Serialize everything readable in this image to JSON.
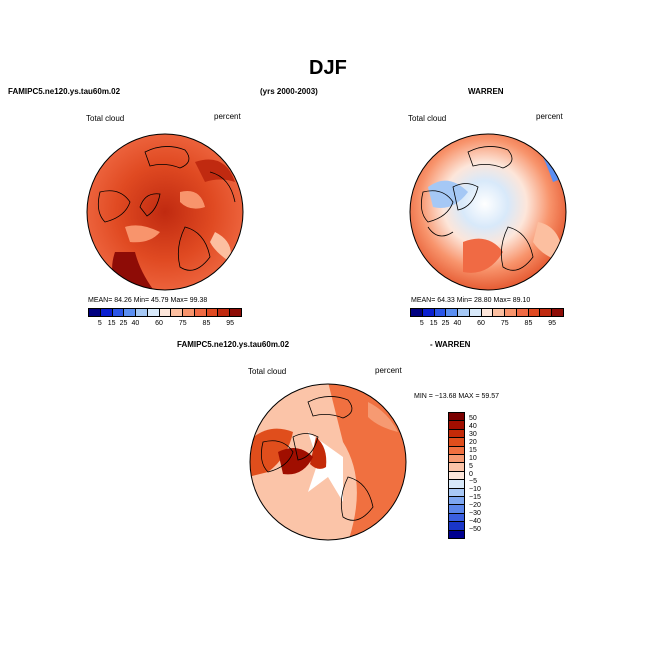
{
  "page": {
    "title": "DJF"
  },
  "header": {
    "left": "FAMIPC5.ne120.ys.tau60m.02",
    "middle": "(yrs 2000-2003)",
    "right": "WARREN"
  },
  "panels": [
    {
      "id": "model",
      "field_label": "Total cloud",
      "unit_label": "percent",
      "stats": "MEAN=   84.26   Min=   45.79   Max=   99.38",
      "colorbar_ticks": [
        "5",
        "15",
        "25",
        "40",
        "60",
        "75",
        "85",
        "95"
      ]
    },
    {
      "id": "obs",
      "field_label": "Total cloud",
      "unit_label": "percent",
      "stats": "MEAN=   64.33   Min=   28.80   Max=   89.10",
      "colorbar_ticks": [
        "5",
        "15",
        "25",
        "40",
        "60",
        "75",
        "85",
        "95"
      ]
    },
    {
      "id": "diff",
      "title_left": "FAMIPC5.ne120.ys.tau60m.02",
      "title_right": "- WARREN",
      "field_label": "Total cloud",
      "unit_label": "percent",
      "stats": "MIN = −13.68  MAX =   59.57",
      "colorbar_ticks": [
        "50",
        "40",
        "30",
        "20",
        "15",
        "10",
        "5",
        "0",
        "−5",
        "−10",
        "−15",
        "−20",
        "−30",
        "−40",
        "−50"
      ]
    }
  ],
  "colors": {
    "abs_scale": [
      "#000080",
      "#0a1fd0",
      "#2a55e8",
      "#5b8ff2",
      "#a5c8f5",
      "#d8e9fa",
      "#fde6da",
      "#fcbfa0",
      "#f8946c",
      "#f06a44",
      "#e04a22",
      "#c02a10",
      "#8e0c06"
    ],
    "diff_scale": [
      "#7a0000",
      "#a00e00",
      "#c42a08",
      "#e04e1c",
      "#f07040",
      "#f69a72",
      "#fbc4a8",
      "#fde6da",
      "#d8e9fa",
      "#a8c8f5",
      "#7da6f0",
      "#5b86ea",
      "#3a5fe0",
      "#1a36c8",
      "#000090"
    ]
  }
}
